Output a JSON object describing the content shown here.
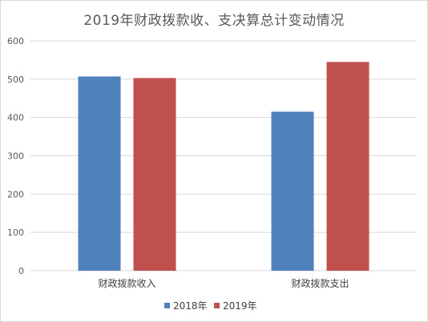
{
  "chart_data": {
    "type": "bar",
    "title": "2019年财政拨款收、支决算总计变动情况",
    "categories": [
      "财政拨款收入",
      "财政拨款支出"
    ],
    "series": [
      {
        "name": "2018年",
        "values": [
          507,
          415
        ],
        "color": "#4f81bd"
      },
      {
        "name": "2019年",
        "values": [
          503,
          545
        ],
        "color": "#c0504d"
      }
    ],
    "ylim": [
      0,
      600
    ],
    "yticks": [
      0,
      100,
      200,
      300,
      400,
      500,
      600
    ],
    "xlabel": "",
    "ylabel": "",
    "grid": true,
    "legend_position": "bottom"
  }
}
